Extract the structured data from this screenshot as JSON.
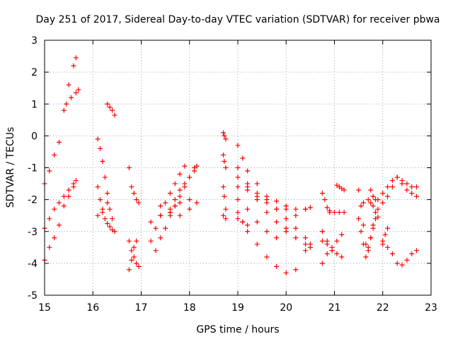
{
  "chart_data": {
    "type": "scatter",
    "title": "Day 251 of 2017, Sidereal Day-to-day VTEC variation (SDTVAR) for receiver pbwa",
    "xlabel": "GPS time / hours",
    "ylabel": "SDTVAR / TECUs",
    "xlim": [
      15,
      23
    ],
    "ylim": [
      -5,
      3
    ],
    "xticks": [
      15,
      16,
      17,
      18,
      19,
      20,
      21,
      22,
      23
    ],
    "yticks": [
      -5,
      -4,
      -3,
      -2,
      -1,
      0,
      1,
      2,
      3
    ],
    "grid": true,
    "marker": "+",
    "color": "#ff0000",
    "series": [
      {
        "name": "s1",
        "x": [
          15.0,
          15.1,
          15.2,
          15.3,
          15.4,
          15.5,
          15.6,
          15.65
        ],
        "y": [
          -1.5,
          -1.1,
          -0.6,
          -0.2,
          0.8,
          1.6,
          2.2,
          2.45
        ]
      },
      {
        "name": "s2",
        "x": [
          15.45,
          15.55,
          15.65,
          15.7
        ],
        "y": [
          1.0,
          1.2,
          1.35,
          1.45
        ]
      },
      {
        "name": "s3",
        "x": [
          15.0,
          15.1,
          15.2,
          15.3,
          15.4,
          15.5,
          15.6,
          15.65
        ],
        "y": [
          -3.9,
          -3.5,
          -3.2,
          -2.8,
          -2.2,
          -1.9,
          -1.6,
          -1.4
        ]
      },
      {
        "name": "s4",
        "x": [
          15.0,
          15.1,
          15.2,
          15.3,
          15.4,
          15.5,
          15.6
        ],
        "y": [
          -2.9,
          -2.6,
          -2.3,
          -2.1,
          -1.9,
          -1.7,
          -1.5
        ]
      },
      {
        "name": "s5",
        "x": [
          16.1,
          16.15,
          16.2,
          16.25,
          16.3,
          16.35,
          16.4
        ],
        "y": [
          -0.1,
          -0.4,
          -0.8,
          -1.3,
          -1.8,
          -2.3,
          -2.6
        ]
      },
      {
        "name": "s6",
        "x": [
          16.3,
          16.35,
          16.4,
          16.45
        ],
        "y": [
          1.0,
          0.9,
          0.8,
          0.65
        ]
      },
      {
        "name": "s7",
        "x": [
          16.1,
          16.15,
          16.2,
          16.25,
          16.3,
          16.35,
          16.4,
          16.45
        ],
        "y": [
          -1.6,
          -2.0,
          -2.4,
          -2.6,
          -2.75,
          -2.85,
          -2.95,
          -3.0
        ]
      },
      {
        "name": "s8",
        "x": [
          16.1,
          16.2,
          16.3
        ],
        "y": [
          -2.5,
          -2.3,
          -2.1
        ]
      },
      {
        "name": "s9",
        "x": [
          16.75,
          16.8,
          16.85,
          16.9,
          16.95
        ],
        "y": [
          -1.0,
          -1.6,
          -1.8,
          -2.0,
          -2.1
        ]
      },
      {
        "name": "s10",
        "x": [
          16.75,
          16.8,
          16.85,
          16.9,
          16.95
        ],
        "y": [
          -3.3,
          -3.6,
          -3.8,
          -4.0,
          -4.1
        ]
      },
      {
        "name": "s11",
        "x": [
          16.75,
          16.8,
          16.85,
          16.9
        ],
        "y": [
          -4.2,
          -3.9,
          -3.5,
          -3.3
        ]
      },
      {
        "name": "s12",
        "x": [
          17.2,
          17.3,
          17.4,
          17.5,
          17.6,
          17.7,
          17.8,
          17.9
        ],
        "y": [
          -3.3,
          -2.9,
          -2.5,
          -2.1,
          -1.8,
          -1.5,
          -1.2,
          -0.95
        ]
      },
      {
        "name": "s13",
        "x": [
          17.3,
          17.4,
          17.5,
          17.6,
          17.7
        ],
        "y": [
          -3.6,
          -3.2,
          -2.9,
          -2.5,
          -2.2
        ]
      },
      {
        "name": "s14",
        "x": [
          17.2,
          17.4,
          17.6,
          17.8,
          18.0
        ],
        "y": [
          -2.7,
          -2.5,
          -2.3,
          -2.1,
          -2.0
        ]
      },
      {
        "name": "s15",
        "x": [
          17.4,
          17.6,
          17.8,
          18.0,
          18.15
        ],
        "y": [
          -2.2,
          -2.4,
          -2.5,
          -2.3,
          -2.1
        ]
      },
      {
        "name": "s16",
        "x": [
          17.6,
          17.7,
          17.8,
          17.9,
          18.0,
          18.1,
          18.15
        ],
        "y": [
          -2.4,
          -2.0,
          -1.7,
          -1.5,
          -1.3,
          -1.1,
          -0.95
        ]
      },
      {
        "name": "s17",
        "x": [
          17.7,
          17.8,
          17.9,
          18.0,
          18.1
        ],
        "y": [
          -2.2,
          -1.9,
          -1.6,
          -1.3,
          -1.0
        ]
      },
      {
        "name": "s18",
        "x": [
          18.7,
          18.72,
          18.75
        ],
        "y": [
          0.1,
          0.0,
          -0.1
        ]
      },
      {
        "name": "s19",
        "x": [
          18.7,
          18.72,
          18.75
        ],
        "y": [
          -0.6,
          -0.8,
          -1.0
        ]
      },
      {
        "name": "s20",
        "x": [
          18.7,
          18.72,
          18.75
        ],
        "y": [
          -1.6,
          -1.9,
          -2.3
        ]
      },
      {
        "name": "s21",
        "x": [
          18.7,
          18.75
        ],
        "y": [
          -2.5,
          -2.6
        ]
      },
      {
        "name": "s22",
        "x": [
          19.0,
          19.1,
          19.2,
          19.4,
          19.6,
          19.8,
          20.0,
          20.2,
          20.4,
          20.5
        ],
        "y": [
          -0.3,
          -0.7,
          -1.1,
          -1.5,
          -2.0,
          -2.3,
          -2.6,
          -2.9,
          -3.2,
          -3.4
        ]
      },
      {
        "name": "s23",
        "x": [
          19.0,
          19.2,
          19.4,
          19.6,
          19.8,
          20.0
        ],
        "y": [
          -1.6,
          -1.7,
          -1.8,
          -1.9,
          -2.05,
          -2.2
        ]
      },
      {
        "name": "s24",
        "x": [
          19.0,
          19.1,
          19.2,
          19.4,
          19.6,
          19.8,
          20.0,
          20.2,
          20.4
        ],
        "y": [
          -2.4,
          -2.7,
          -3.0,
          -3.4,
          -3.8,
          -4.1,
          -4.3,
          -4.2,
          -3.6
        ]
      },
      {
        "name": "s25",
        "x": [
          19.0,
          19.2,
          19.4,
          19.6,
          19.8,
          20.0,
          20.2,
          20.4,
          20.5
        ],
        "y": [
          -1.3,
          -1.6,
          -2.0,
          -2.4,
          -2.7,
          -3.0,
          -3.2,
          -3.4,
          -3.5
        ]
      },
      {
        "name": "s26",
        "x": [
          19.0,
          19.2,
          19.4,
          19.6,
          19.8,
          20.0,
          20.2,
          20.4,
          20.5
        ],
        "y": [
          -2.0,
          -2.3,
          -2.7,
          -3.0,
          -3.2,
          -2.9,
          -2.5,
          -2.3,
          -2.25
        ]
      },
      {
        "name": "s27",
        "x": [
          19.0,
          19.2,
          19.4,
          19.6,
          19.8,
          20.0,
          20.2,
          20.4
        ],
        "y": [
          -1.0,
          -1.5,
          -1.9,
          -2.1,
          -2.3,
          -2.3,
          -2.3,
          -2.3
        ]
      },
      {
        "name": "s28",
        "x": [
          19.0,
          19.1,
          19.2
        ],
        "y": [
          -2.6,
          -2.7,
          -2.8
        ]
      },
      {
        "name": "s29",
        "x": [
          20.75,
          20.8,
          20.85,
          20.9
        ],
        "y": [
          -1.8,
          -2.0,
          -2.25,
          -2.35
        ]
      },
      {
        "name": "s30",
        "x": [
          20.9,
          21.0,
          21.1,
          21.2
        ],
        "y": [
          -2.4,
          -2.4,
          -2.4,
          -2.4
        ]
      },
      {
        "name": "s31",
        "x": [
          20.75,
          20.85,
          20.95,
          21.05,
          21.15
        ],
        "y": [
          -4.0,
          -3.7,
          -3.5,
          -3.3,
          -3.1
        ]
      },
      {
        "name": "s32",
        "x": [
          20.75,
          20.85,
          20.95,
          21.05,
          21.15
        ],
        "y": [
          -3.3,
          -3.4,
          -3.6,
          -3.7,
          -3.8
        ]
      },
      {
        "name": "s33",
        "x": [
          20.75,
          20.85,
          20.95
        ],
        "y": [
          -3.0,
          -3.3,
          -3.6
        ]
      },
      {
        "name": "s34",
        "x": [
          21.05,
          21.1,
          21.15,
          21.2
        ],
        "y": [
          -1.55,
          -1.6,
          -1.65,
          -1.7
        ]
      },
      {
        "name": "s35",
        "x": [
          21.5,
          21.55,
          21.6,
          21.65,
          21.7,
          21.75,
          21.8,
          21.85
        ],
        "y": [
          -1.7,
          -2.2,
          -2.8,
          -3.4,
          -3.5,
          -3.2,
          -2.9,
          -2.6
        ]
      },
      {
        "name": "s36",
        "x": [
          21.5,
          21.55,
          21.6,
          21.65,
          21.7,
          21.75,
          21.8
        ],
        "y": [
          -2.6,
          -3.0,
          -3.4,
          -3.8,
          -3.6,
          -3.2,
          -2.8
        ]
      },
      {
        "name": "s37",
        "x": [
          21.6,
          21.7,
          21.8,
          21.9
        ],
        "y": [
          -2.1,
          -2.0,
          -1.9,
          -2.0
        ]
      },
      {
        "name": "s38",
        "x": [
          21.75,
          21.8,
          21.85,
          21.9
        ],
        "y": [
          -2.1,
          -2.2,
          -2.4,
          -2.55
        ]
      },
      {
        "name": "s39",
        "x": [
          21.75,
          21.8,
          21.85,
          21.9
        ],
        "y": [
          -1.7,
          -1.9,
          -2.0,
          -2.3
        ]
      },
      {
        "name": "s40",
        "x": [
          22.0,
          22.1,
          22.2,
          22.3,
          22.4,
          22.5,
          22.6,
          22.7
        ],
        "y": [
          -2.1,
          -1.9,
          -1.6,
          -1.3,
          -1.5,
          -1.7,
          -1.8,
          -1.9
        ]
      },
      {
        "name": "s41",
        "x": [
          22.0,
          22.1,
          22.2,
          22.3,
          22.4,
          22.5,
          22.6,
          22.7
        ],
        "y": [
          -1.8,
          -1.6,
          -1.4,
          -1.3,
          -1.4,
          -1.5,
          -1.6,
          -1.6
        ]
      },
      {
        "name": "s42",
        "x": [
          22.0,
          22.1,
          22.2,
          22.3,
          22.4,
          22.5,
          22.6,
          22.7
        ],
        "y": [
          -3.4,
          -3.5,
          -3.7,
          -4.0,
          -4.05,
          -3.9,
          -3.7,
          -3.6
        ]
      },
      {
        "name": "s43",
        "x": [
          22.0,
          22.05,
          22.1
        ],
        "y": [
          -3.3,
          -3.1,
          -2.9
        ]
      }
    ]
  }
}
